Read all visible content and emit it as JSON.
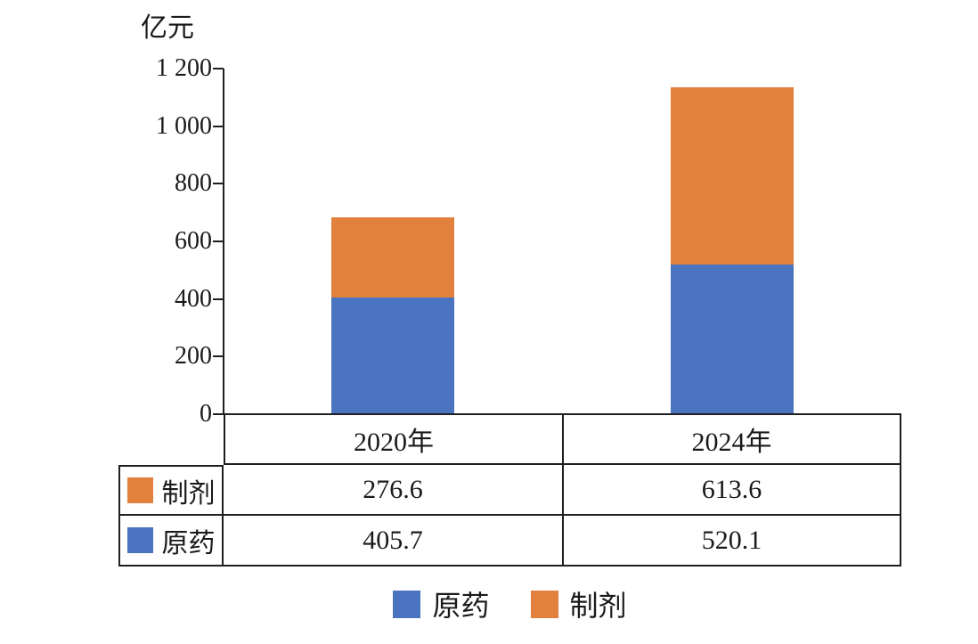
{
  "chart_data": {
    "type": "bar",
    "stacked": true,
    "unit_label": "亿元",
    "categories": [
      "2020年",
      "2024年"
    ],
    "series": [
      {
        "key": "technical-material",
        "name": "原药",
        "color": "#4a74bf",
        "values": [
          405.7,
          520.1
        ]
      },
      {
        "key": "formulation",
        "name": "制剂",
        "color": "#e2813e",
        "values": [
          276.6,
          613.6
        ]
      }
    ],
    "ylim": [
      0,
      1200
    ],
    "yticks": [
      0,
      200,
      400,
      600,
      800,
      1000,
      1200
    ],
    "ytick_labels": [
      "0",
      "200",
      "400",
      "600",
      "800",
      "1 000",
      "1 200"
    ],
    "grid": false,
    "legend_position": "bottom"
  },
  "table": {
    "column_headers": [
      "2020年",
      "2024年"
    ],
    "rows": [
      {
        "key": "formulation",
        "label": "制剂",
        "color": "#e2813e",
        "values": [
          "276.6",
          "613.6"
        ]
      },
      {
        "key": "technical-material",
        "label": "原药",
        "color": "#4a74bf",
        "values": [
          "405.7",
          "520.1"
        ]
      }
    ]
  },
  "legend": {
    "items": [
      {
        "key": "technical-material",
        "label": "原药",
        "color": "#4a74bf"
      },
      {
        "key": "formulation",
        "label": "制剂",
        "color": "#e2813e"
      }
    ]
  },
  "colors": {
    "axis": "#1f1f1f",
    "text": "#1a1a1a",
    "series_blue": "#4a74bf",
    "series_orange": "#e2813e"
  }
}
